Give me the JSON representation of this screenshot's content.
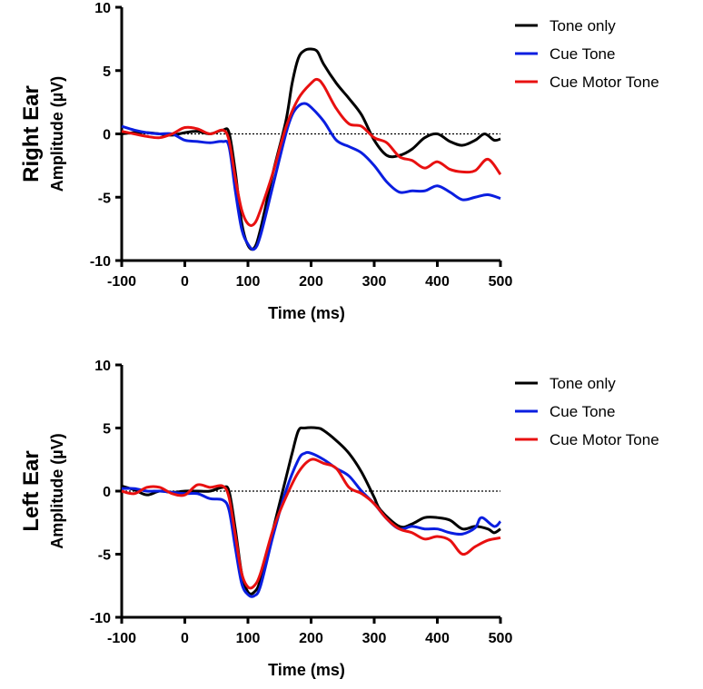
{
  "chart_data": [
    {
      "type": "line",
      "panel_label": "Right Ear",
      "xlabel": "Time (ms)",
      "ylabel": "Amplitude (µV)",
      "xlim": [
        -100,
        500
      ],
      "ylim": [
        -10,
        10
      ],
      "xticks": [
        -100,
        0,
        100,
        200,
        300,
        400,
        500
      ],
      "yticks": [
        10,
        5,
        0,
        -5,
        -10
      ],
      "legend_position": "top-right",
      "zero_line": "dotted",
      "series": [
        {
          "name": "Tone only",
          "color": "#000000",
          "points": [
            [
              -100,
              0
            ],
            [
              -80,
              0.1
            ],
            [
              -60,
              0.1
            ],
            [
              -40,
              0
            ],
            [
              -20,
              -0.1
            ],
            [
              0,
              0.1
            ],
            [
              20,
              0.2
            ],
            [
              40,
              0
            ],
            [
              60,
              0.3
            ],
            [
              70,
              0.1
            ],
            [
              80,
              -3
            ],
            [
              90,
              -7
            ],
            [
              100,
              -8.8
            ],
            [
              110,
              -9
            ],
            [
              120,
              -7.5
            ],
            [
              140,
              -3
            ],
            [
              160,
              1
            ],
            [
              170,
              4
            ],
            [
              180,
              6
            ],
            [
              190,
              6.6
            ],
            [
              200,
              6.7
            ],
            [
              210,
              6.5
            ],
            [
              220,
              5.5
            ],
            [
              240,
              4
            ],
            [
              260,
              2.8
            ],
            [
              280,
              1.5
            ],
            [
              300,
              -0.5
            ],
            [
              320,
              -1.7
            ],
            [
              340,
              -1.7
            ],
            [
              360,
              -1.2
            ],
            [
              380,
              -0.3
            ],
            [
              400,
              0
            ],
            [
              420,
              -0.6
            ],
            [
              440,
              -0.9
            ],
            [
              460,
              -0.5
            ],
            [
              475,
              0
            ],
            [
              490,
              -0.5
            ],
            [
              500,
              -0.4
            ]
          ]
        },
        {
          "name": "Cue Tone",
          "color": "#0a1ee0",
          "points": [
            [
              -100,
              0.6
            ],
            [
              -80,
              0.3
            ],
            [
              -60,
              0.1
            ],
            [
              -40,
              0
            ],
            [
              -20,
              0
            ],
            [
              0,
              -0.5
            ],
            [
              20,
              -0.6
            ],
            [
              40,
              -0.7
            ],
            [
              60,
              -0.6
            ],
            [
              70,
              -1
            ],
            [
              80,
              -4.5
            ],
            [
              90,
              -7.5
            ],
            [
              100,
              -8.7
            ],
            [
              110,
              -9.1
            ],
            [
              120,
              -8
            ],
            [
              140,
              -4
            ],
            [
              160,
              0
            ],
            [
              170,
              1.5
            ],
            [
              180,
              2.2
            ],
            [
              190,
              2.4
            ],
            [
              200,
              2.1
            ],
            [
              220,
              1
            ],
            [
              240,
              -0.5
            ],
            [
              260,
              -1
            ],
            [
              280,
              -1.5
            ],
            [
              300,
              -2.5
            ],
            [
              320,
              -3.8
            ],
            [
              340,
              -4.6
            ],
            [
              360,
              -4.5
            ],
            [
              380,
              -4.5
            ],
            [
              400,
              -4.1
            ],
            [
              420,
              -4.6
            ],
            [
              440,
              -5.2
            ],
            [
              460,
              -5
            ],
            [
              480,
              -4.8
            ],
            [
              500,
              -5.1
            ]
          ]
        },
        {
          "name": "Cue Motor Tone",
          "color": "#e81010",
          "points": [
            [
              -100,
              0.2
            ],
            [
              -80,
              0
            ],
            [
              -60,
              -0.2
            ],
            [
              -40,
              -0.3
            ],
            [
              -20,
              0
            ],
            [
              0,
              0.5
            ],
            [
              20,
              0.4
            ],
            [
              40,
              0
            ],
            [
              60,
              0.3
            ],
            [
              70,
              -0.5
            ],
            [
              80,
              -3.5
            ],
            [
              90,
              -6
            ],
            [
              100,
              -7.1
            ],
            [
              110,
              -7.1
            ],
            [
              120,
              -6
            ],
            [
              140,
              -3
            ],
            [
              160,
              0.5
            ],
            [
              180,
              2.8
            ],
            [
              200,
              4
            ],
            [
              210,
              4.3
            ],
            [
              220,
              3.8
            ],
            [
              240,
              2
            ],
            [
              260,
              0.8
            ],
            [
              280,
              0.6
            ],
            [
              300,
              -0.3
            ],
            [
              320,
              -0.7
            ],
            [
              340,
              -1.8
            ],
            [
              360,
              -2.1
            ],
            [
              380,
              -2.7
            ],
            [
              400,
              -2.2
            ],
            [
              420,
              -2.8
            ],
            [
              440,
              -3
            ],
            [
              460,
              -2.9
            ],
            [
              480,
              -2
            ],
            [
              500,
              -3.2
            ]
          ]
        }
      ]
    },
    {
      "type": "line",
      "panel_label": "Left Ear",
      "xlabel": "Time (ms)",
      "ylabel": "Amplitude (µV)",
      "xlim": [
        -100,
        500
      ],
      "ylim": [
        -10,
        10
      ],
      "xticks": [
        -100,
        0,
        100,
        200,
        300,
        400,
        500
      ],
      "yticks": [
        10,
        5,
        0,
        -5,
        -10
      ],
      "legend_position": "top-right",
      "zero_line": "dotted",
      "series": [
        {
          "name": "Tone only",
          "color": "#000000",
          "points": [
            [
              -100,
              0.4
            ],
            [
              -80,
              0.1
            ],
            [
              -60,
              -0.3
            ],
            [
              -40,
              0
            ],
            [
              -20,
              -0.1
            ],
            [
              0,
              0
            ],
            [
              20,
              0
            ],
            [
              40,
              0
            ],
            [
              60,
              0.3
            ],
            [
              70,
              0
            ],
            [
              80,
              -3
            ],
            [
              90,
              -6.5
            ],
            [
              100,
              -8
            ],
            [
              110,
              -8
            ],
            [
              120,
              -7
            ],
            [
              140,
              -3
            ],
            [
              160,
              1
            ],
            [
              170,
              3
            ],
            [
              180,
              4.8
            ],
            [
              190,
              5
            ],
            [
              210,
              5
            ],
            [
              220,
              4.8
            ],
            [
              240,
              4
            ],
            [
              260,
              3
            ],
            [
              280,
              1.5
            ],
            [
              300,
              -0.5
            ],
            [
              310,
              -1.5
            ],
            [
              340,
              -2.8
            ],
            [
              360,
              -2.6
            ],
            [
              380,
              -2.1
            ],
            [
              400,
              -2.1
            ],
            [
              420,
              -2.3
            ],
            [
              440,
              -3
            ],
            [
              460,
              -2.8
            ],
            [
              480,
              -3
            ],
            [
              490,
              -3.3
            ],
            [
              500,
              -3
            ]
          ]
        },
        {
          "name": "Cue Tone",
          "color": "#0a1ee0",
          "points": [
            [
              -100,
              0.2
            ],
            [
              -80,
              0.2
            ],
            [
              -60,
              0
            ],
            [
              -40,
              0
            ],
            [
              -20,
              -0.1
            ],
            [
              0,
              -0.2
            ],
            [
              20,
              -0.2
            ],
            [
              40,
              -0.6
            ],
            [
              60,
              -0.7
            ],
            [
              70,
              -1.5
            ],
            [
              80,
              -4.5
            ],
            [
              90,
              -7.3
            ],
            [
              100,
              -8.2
            ],
            [
              110,
              -8.3
            ],
            [
              120,
              -7.5
            ],
            [
              140,
              -3.5
            ],
            [
              160,
              0
            ],
            [
              180,
              2.5
            ],
            [
              190,
              3
            ],
            [
              200,
              3
            ],
            [
              220,
              2.5
            ],
            [
              240,
              1.8
            ],
            [
              260,
              1.2
            ],
            [
              280,
              0
            ],
            [
              300,
              -1
            ],
            [
              320,
              -2.2
            ],
            [
              340,
              -3
            ],
            [
              360,
              -2.8
            ],
            [
              380,
              -3
            ],
            [
              400,
              -3
            ],
            [
              420,
              -3.3
            ],
            [
              440,
              -3.4
            ],
            [
              460,
              -2.9
            ],
            [
              470,
              -2.1
            ],
            [
              490,
              -2.8
            ],
            [
              500,
              -2.4
            ]
          ]
        },
        {
          "name": "Cue Motor Tone",
          "color": "#e81010",
          "points": [
            [
              -100,
              0
            ],
            [
              -80,
              -0.2
            ],
            [
              -60,
              0.3
            ],
            [
              -40,
              0.3
            ],
            [
              -20,
              -0.2
            ],
            [
              0,
              -0.3
            ],
            [
              20,
              0.5
            ],
            [
              40,
              0.3
            ],
            [
              60,
              0.4
            ],
            [
              70,
              -0.5
            ],
            [
              80,
              -3.5
            ],
            [
              90,
              -6.5
            ],
            [
              100,
              -7.6
            ],
            [
              110,
              -7.5
            ],
            [
              120,
              -6.5
            ],
            [
              140,
              -3
            ],
            [
              160,
              -0.5
            ],
            [
              180,
              1.5
            ],
            [
              200,
              2.5
            ],
            [
              220,
              2.2
            ],
            [
              240,
              1.8
            ],
            [
              260,
              0.3
            ],
            [
              280,
              -0.2
            ],
            [
              300,
              -1
            ],
            [
              320,
              -2.2
            ],
            [
              340,
              -3
            ],
            [
              360,
              -3.3
            ],
            [
              380,
              -3.8
            ],
            [
              400,
              -3.6
            ],
            [
              420,
              -3.9
            ],
            [
              440,
              -5
            ],
            [
              460,
              -4.4
            ],
            [
              480,
              -3.9
            ],
            [
              500,
              -3.7
            ]
          ]
        }
      ]
    }
  ]
}
